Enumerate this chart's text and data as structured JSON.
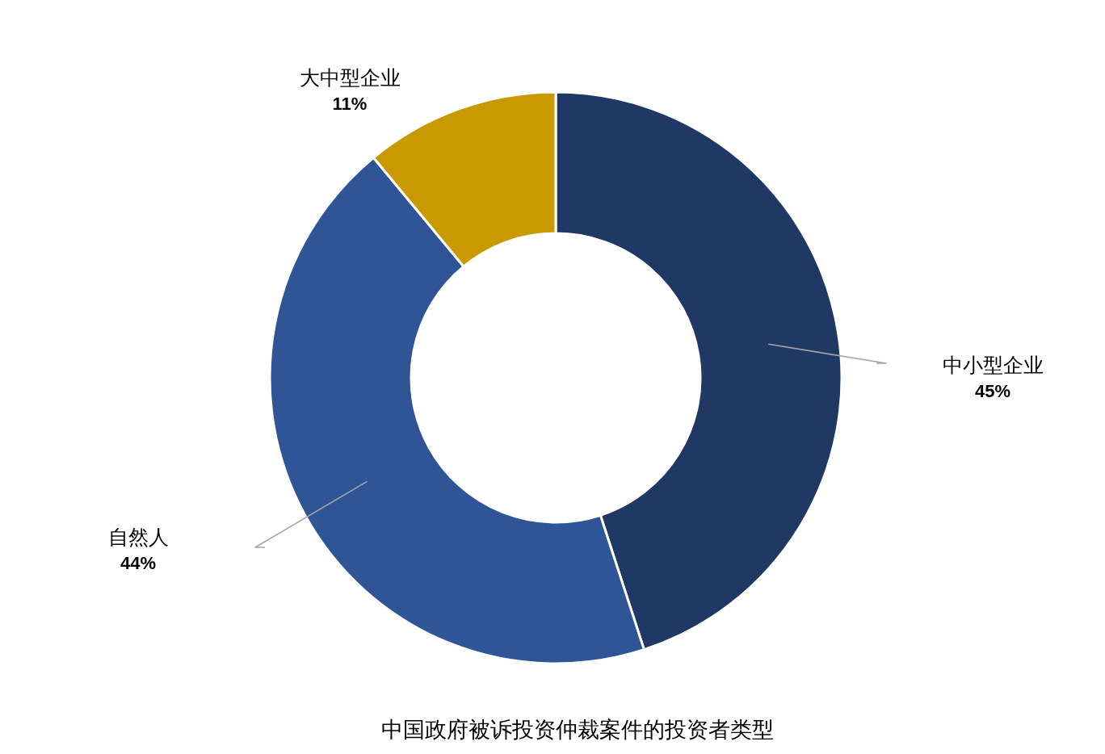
{
  "chart_data": {
    "type": "donut",
    "title": "中国政府被诉投资仲裁案件的投资者类型",
    "categories": [
      "中小型企业",
      "自然人",
      "大中型企业"
    ],
    "values": [
      45,
      44,
      11
    ],
    "value_labels": [
      "45%",
      "44%",
      "11%"
    ],
    "colors": [
      "#203864",
      "#2f5597",
      "#c99a00"
    ]
  }
}
